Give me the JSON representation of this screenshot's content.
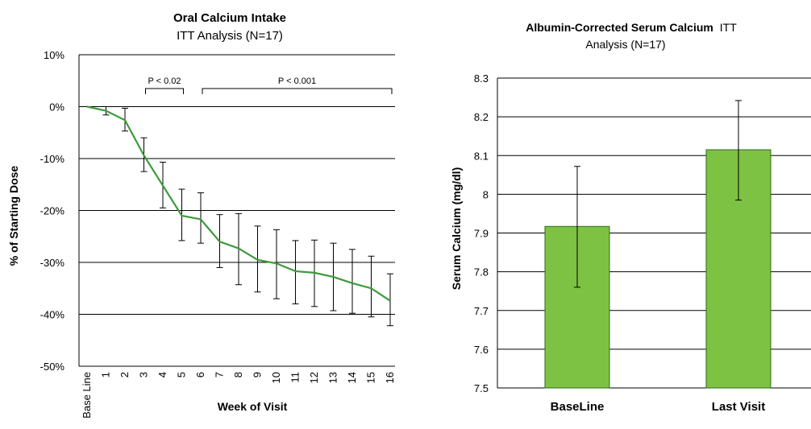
{
  "chart_data": [
    {
      "type": "line",
      "title": "Oral Calcium Intake",
      "subtitle": "ITT Analysis (N=17)",
      "xlabel": "Week of Visit",
      "ylabel": "% of Starting Dose",
      "ylim": [
        -50,
        10
      ],
      "yticks": [
        "10%",
        "0%",
        "-10%",
        "-20%",
        "-30%",
        "-40%",
        "-50%"
      ],
      "yticks_values": [
        10,
        0,
        -10,
        -20,
        -30,
        -40,
        -50
      ],
      "grid": true,
      "series_color": "#3c9a3c",
      "categories": [
        "Base Line",
        "1",
        "2",
        "3",
        "4",
        "5",
        "6",
        "7",
        "8",
        "9",
        "10",
        "11",
        "12",
        "13",
        "14",
        "15",
        "16"
      ],
      "values": [
        0,
        -0.8,
        -2.6,
        -9.4,
        -15.2,
        -21,
        -21.7,
        -26,
        -27.3,
        -29.5,
        -30.2,
        -31.7,
        -32,
        -32.8,
        -34,
        -35,
        -37.4
      ],
      "error_low": [
        0,
        -1.6,
        -4.7,
        -12.5,
        -19.5,
        -25.8,
        -26.3,
        -31,
        -34.3,
        -35.7,
        -37,
        -38,
        -38.5,
        -39.3,
        -39.8,
        -40.5,
        -42.2
      ],
      "error_high": [
        0,
        0,
        -0.3,
        -6,
        -10.7,
        -15.9,
        -16.6,
        -20.8,
        -20.6,
        -23,
        -23.7,
        -25.8,
        -25.7,
        -26.3,
        -27.5,
        -28.8,
        -32.2
      ],
      "annotations": [
        {
          "text": "P < 0.02",
          "from": "3",
          "to": "5"
        },
        {
          "text": "P < 0.001",
          "from": "6",
          "to": "16"
        }
      ]
    },
    {
      "type": "bar",
      "title_bold": "Albumin-Corrected Serum Calcium",
      "title_rest": "ITT",
      "subtitle": "Analysis (N=17)",
      "xlabel": "",
      "ylabel": "Serum Calcium (mg/dl)",
      "ylim": [
        7.5,
        8.3
      ],
      "yticks": [
        "8.3",
        "8.2",
        "8.1",
        "8",
        "7.9",
        "7.8",
        "7.7",
        "7.6",
        "7.5"
      ],
      "yticks_values": [
        8.3,
        8.2,
        8.1,
        8.0,
        7.9,
        7.8,
        7.7,
        7.6,
        7.5
      ],
      "grid": true,
      "bar_color": "#7dc242",
      "categories": [
        "BaseLine",
        "Last Visit"
      ],
      "values": [
        7.917,
        8.115
      ],
      "error_low": [
        7.76,
        7.985
      ],
      "error_high": [
        8.072,
        8.242
      ]
    }
  ]
}
